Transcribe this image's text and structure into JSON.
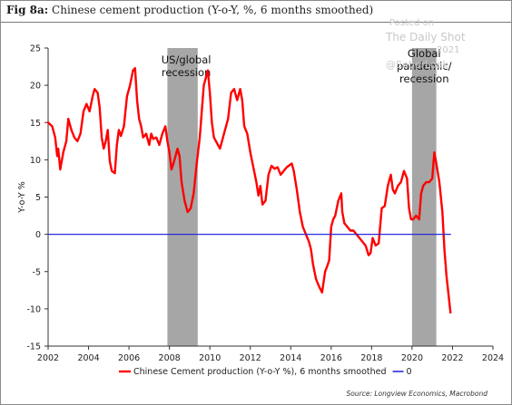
{
  "title_prefix": "Fig 8a:",
  "title_text": "Chinese cement production (Y-o-Y, %, 6 months smoothed)",
  "watermark": {
    "line1": "Posted on",
    "line2": "The Daily Shot",
    "line3": "2021",
    "line4": "@SoberLook"
  },
  "source": "Source: Longview Economics, Macrobond",
  "chart_data": {
    "type": "line",
    "title": "Chinese cement production (Y-o-Y, %, 6 months smoothed)",
    "xlabel": "",
    "ylabel": "Y-o-Y %",
    "xlim": [
      2002,
      2024
    ],
    "ylim": [
      -15,
      25
    ],
    "x_ticks": [
      "2002",
      "2004",
      "2006",
      "2008",
      "2010",
      "2012",
      "2014",
      "2016",
      "2018",
      "2020",
      "2022",
      "2024"
    ],
    "y_ticks": [
      "25",
      "20",
      "15",
      "10",
      "5",
      "0",
      "-5",
      "-10",
      "-15"
    ],
    "legend_position": "bottom",
    "shaded_regions": [
      {
        "x_start": 2007.9,
        "x_end": 2009.4,
        "label": "US/global recession",
        "color": "#a6a6a6"
      },
      {
        "x_start": 2020.0,
        "x_end": 2021.2,
        "label": "Global pandemic/ recession",
        "color": "#a6a6a6"
      }
    ],
    "series": [
      {
        "name": "Chinese Cement production (Y-o-Y %), 6 months smoothed",
        "color": "#ff0000",
        "points": [
          [
            2002.0,
            15.0
          ],
          [
            2002.2,
            14.5
          ],
          [
            2002.35,
            13.0
          ],
          [
            2002.45,
            10.5
          ],
          [
            2002.5,
            11.5
          ],
          [
            2002.6,
            8.7
          ],
          [
            2002.75,
            11.0
          ],
          [
            2002.9,
            12.5
          ],
          [
            2003.0,
            15.5
          ],
          [
            2003.15,
            14.0
          ],
          [
            2003.3,
            13.0
          ],
          [
            2003.45,
            12.5
          ],
          [
            2003.6,
            13.5
          ],
          [
            2003.75,
            16.5
          ],
          [
            2003.9,
            17.5
          ],
          [
            2004.05,
            16.5
          ],
          [
            2004.2,
            18.5
          ],
          [
            2004.3,
            19.5
          ],
          [
            2004.45,
            19.0
          ],
          [
            2004.55,
            17.0
          ],
          [
            2004.65,
            13.0
          ],
          [
            2004.75,
            11.5
          ],
          [
            2004.85,
            12.5
          ],
          [
            2004.95,
            14.0
          ],
          [
            2005.05,
            9.8
          ],
          [
            2005.15,
            8.5
          ],
          [
            2005.3,
            8.2
          ],
          [
            2005.4,
            12.0
          ],
          [
            2005.5,
            14.0
          ],
          [
            2005.6,
            13.2
          ],
          [
            2005.75,
            14.5
          ],
          [
            2005.9,
            18.5
          ],
          [
            2006.05,
            20.0
          ],
          [
            2006.2,
            22.0
          ],
          [
            2006.3,
            22.3
          ],
          [
            2006.4,
            18.0
          ],
          [
            2006.5,
            15.5
          ],
          [
            2006.6,
            14.5
          ],
          [
            2006.7,
            13.0
          ],
          [
            2006.85,
            13.5
          ],
          [
            2007.0,
            12.0
          ],
          [
            2007.1,
            13.5
          ],
          [
            2007.2,
            12.8
          ],
          [
            2007.35,
            13.0
          ],
          [
            2007.5,
            12.0
          ],
          [
            2007.65,
            13.5
          ],
          [
            2007.8,
            14.5
          ],
          [
            2007.9,
            12.5
          ],
          [
            2008.0,
            11.0
          ],
          [
            2008.1,
            8.7
          ],
          [
            2008.2,
            9.5
          ],
          [
            2008.3,
            10.5
          ],
          [
            2008.4,
            11.5
          ],
          [
            2008.5,
            10.5
          ],
          [
            2008.6,
            7.0
          ],
          [
            2008.75,
            4.5
          ],
          [
            2008.9,
            3.0
          ],
          [
            2009.05,
            3.5
          ],
          [
            2009.2,
            5.5
          ],
          [
            2009.35,
            9.5
          ],
          [
            2009.5,
            13.0
          ],
          [
            2009.6,
            16.5
          ],
          [
            2009.7,
            20.0
          ],
          [
            2009.8,
            21.0
          ],
          [
            2009.9,
            22.0
          ],
          [
            2010.0,
            19.0
          ],
          [
            2010.1,
            15.0
          ],
          [
            2010.2,
            13.0
          ],
          [
            2010.3,
            12.5
          ],
          [
            2010.4,
            12.0
          ],
          [
            2010.5,
            11.5
          ],
          [
            2010.6,
            12.5
          ],
          [
            2010.75,
            14.0
          ],
          [
            2010.9,
            15.5
          ],
          [
            2011.05,
            19.0
          ],
          [
            2011.2,
            19.5
          ],
          [
            2011.35,
            18.0
          ],
          [
            2011.5,
            19.5
          ],
          [
            2011.6,
            18.0
          ],
          [
            2011.7,
            14.5
          ],
          [
            2011.85,
            13.5
          ],
          [
            2012.0,
            11.0
          ],
          [
            2012.15,
            9.0
          ],
          [
            2012.3,
            7.0
          ],
          [
            2012.4,
            5.2
          ],
          [
            2012.5,
            6.5
          ],
          [
            2012.6,
            4.0
          ],
          [
            2012.75,
            4.5
          ],
          [
            2012.9,
            8.0
          ],
          [
            2013.05,
            9.2
          ],
          [
            2013.2,
            8.8
          ],
          [
            2013.35,
            9.0
          ],
          [
            2013.5,
            8.0
          ],
          [
            2013.65,
            8.5
          ],
          [
            2013.8,
            9.0
          ],
          [
            2013.95,
            9.3
          ],
          [
            2014.05,
            9.5
          ],
          [
            2014.15,
            8.5
          ],
          [
            2014.3,
            6.0
          ],
          [
            2014.45,
            3.0
          ],
          [
            2014.6,
            1.0
          ],
          [
            2014.75,
            0.0
          ],
          [
            2014.9,
            -1.0
          ],
          [
            2015.0,
            -2.0
          ],
          [
            2015.1,
            -4.0
          ],
          [
            2015.25,
            -6.0
          ],
          [
            2015.4,
            -7.0
          ],
          [
            2015.55,
            -7.8
          ],
          [
            2015.7,
            -5.0
          ],
          [
            2015.8,
            -4.3
          ],
          [
            2015.9,
            -3.5
          ],
          [
            2016.0,
            1.0
          ],
          [
            2016.1,
            2.0
          ],
          [
            2016.2,
            2.5
          ],
          [
            2016.35,
            4.5
          ],
          [
            2016.5,
            5.5
          ],
          [
            2016.55,
            3.0
          ],
          [
            2016.65,
            1.5
          ],
          [
            2016.8,
            1.0
          ],
          [
            2016.95,
            0.5
          ],
          [
            2017.1,
            0.5
          ],
          [
            2017.25,
            0.0
          ],
          [
            2017.4,
            -0.5
          ],
          [
            2017.55,
            -1.0
          ],
          [
            2017.7,
            -1.5
          ],
          [
            2017.85,
            -2.8
          ],
          [
            2017.95,
            -2.5
          ],
          [
            2018.05,
            -0.5
          ],
          [
            2018.2,
            -1.5
          ],
          [
            2018.35,
            -1.2
          ],
          [
            2018.5,
            3.5
          ],
          [
            2018.65,
            3.8
          ],
          [
            2018.8,
            6.5
          ],
          [
            2018.95,
            8.0
          ],
          [
            2019.05,
            6.0
          ],
          [
            2019.15,
            5.5
          ],
          [
            2019.3,
            6.5
          ],
          [
            2019.45,
            7.0
          ],
          [
            2019.6,
            8.5
          ],
          [
            2019.75,
            7.5
          ],
          [
            2019.85,
            3.5
          ],
          [
            2019.95,
            2.0
          ],
          [
            2020.05,
            2.0
          ],
          [
            2020.2,
            2.5
          ],
          [
            2020.35,
            2.0
          ],
          [
            2020.45,
            5.5
          ],
          [
            2020.55,
            6.5
          ],
          [
            2020.7,
            7.0
          ],
          [
            2020.85,
            7.0
          ],
          [
            2021.0,
            7.5
          ],
          [
            2021.1,
            11.0
          ],
          [
            2021.2,
            9.5
          ],
          [
            2021.35,
            7.0
          ],
          [
            2021.5,
            3.0
          ],
          [
            2021.6,
            -2.0
          ],
          [
            2021.7,
            -5.5
          ],
          [
            2021.8,
            -8.0
          ],
          [
            2021.9,
            -10.5
          ]
        ]
      },
      {
        "name": "0",
        "color": "#2a2adb",
        "points": [
          [
            2002.0,
            0.0
          ],
          [
            2021.9,
            0.0
          ]
        ]
      }
    ]
  }
}
